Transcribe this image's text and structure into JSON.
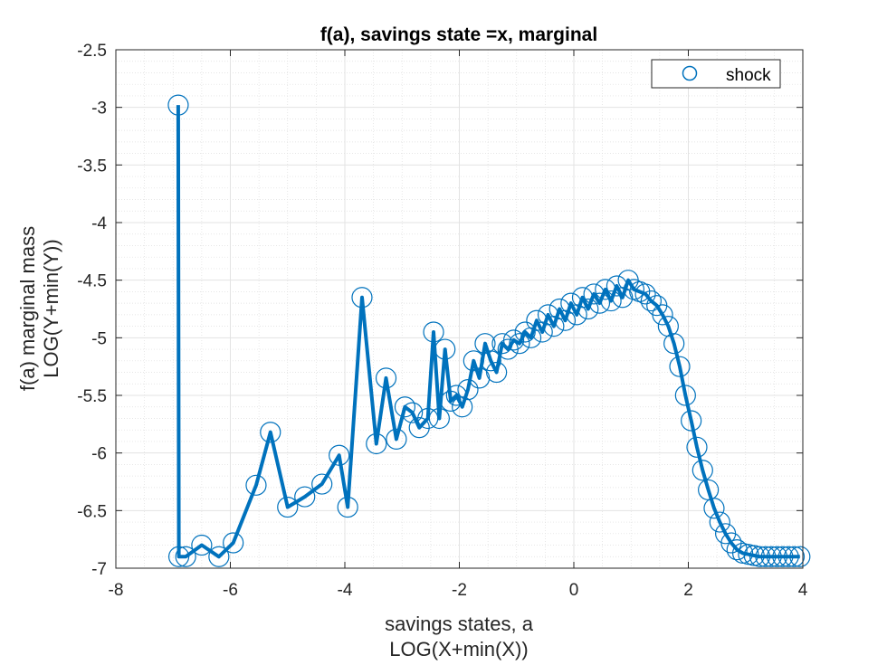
{
  "chart_data": {
    "type": "line",
    "title": "f(a), savings state =x, marginal",
    "xlabel_lines": [
      "savings states, a",
      "LOG(X+min(X))"
    ],
    "ylabel_lines": [
      "f(a) marginal mass",
      "LOG(Y+min(Y))"
    ],
    "xlim": [
      -8,
      4
    ],
    "ylim": [
      -7,
      -2.5
    ],
    "xticks": [
      -8,
      -6,
      -4,
      -2,
      0,
      2,
      4
    ],
    "xtick_labels": [
      "-8",
      "-6",
      "-4",
      "-2",
      "0",
      "2",
      "4"
    ],
    "yticks": [
      -7,
      -6.5,
      -6,
      -5.5,
      -5,
      -4.5,
      -4,
      -3.5,
      -3,
      -2.5
    ],
    "ytick_labels": [
      "-7",
      "-6.5",
      "-6",
      "-5.5",
      "-5",
      "-4.5",
      "-4",
      "-3.5",
      "-3",
      "-2.5"
    ],
    "grid": true,
    "minor_grid": true,
    "legend_position": "top-right",
    "color": "#0072BD",
    "series": [
      {
        "name": "shock",
        "marker": "circle",
        "x": [
          -6.91,
          -6.9,
          -6.78,
          -6.5,
          -6.2,
          -5.95,
          -5.55,
          -5.3,
          -5.0,
          -4.7,
          -4.4,
          -4.1,
          -3.95,
          -3.7,
          -3.45,
          -3.28,
          -3.1,
          -2.95,
          -2.82,
          -2.7,
          -2.55,
          -2.45,
          -2.35,
          -2.25,
          -2.15,
          -2.05,
          -1.95,
          -1.85,
          -1.75,
          -1.65,
          -1.55,
          -1.45,
          -1.35,
          -1.25,
          -1.15,
          -1.05,
          -0.95,
          -0.85,
          -0.75,
          -0.65,
          -0.55,
          -0.45,
          -0.35,
          -0.25,
          -0.15,
          -0.05,
          0.05,
          0.15,
          0.25,
          0.35,
          0.45,
          0.55,
          0.65,
          0.75,
          0.85,
          0.95,
          1.05,
          1.15,
          1.25,
          1.35,
          1.45,
          1.55,
          1.65,
          1.75,
          1.85,
          1.95,
          2.05,
          2.15,
          2.25,
          2.35,
          2.45,
          2.55,
          2.65,
          2.75,
          2.85,
          2.95,
          3.05,
          3.15,
          3.25,
          3.35,
          3.45,
          3.55,
          3.65,
          3.75,
          3.85,
          3.95
        ],
        "y": [
          -2.98,
          -6.9,
          -6.9,
          -6.8,
          -6.9,
          -6.78,
          -6.28,
          -5.82,
          -6.47,
          -6.38,
          -6.27,
          -6.02,
          -6.47,
          -4.65,
          -5.92,
          -5.35,
          -5.88,
          -5.6,
          -5.65,
          -5.78,
          -5.7,
          -4.95,
          -5.7,
          -5.1,
          -5.55,
          -5.5,
          -5.6,
          -5.45,
          -5.2,
          -5.35,
          -5.05,
          -5.2,
          -5.3,
          -5.05,
          -5.1,
          -5.02,
          -5.05,
          -4.95,
          -5.0,
          -4.85,
          -4.95,
          -4.8,
          -4.9,
          -4.75,
          -4.85,
          -4.7,
          -4.8,
          -4.65,
          -4.75,
          -4.62,
          -4.7,
          -4.58,
          -4.68,
          -4.55,
          -4.65,
          -4.5,
          -4.58,
          -4.6,
          -4.62,
          -4.68,
          -4.72,
          -4.8,
          -4.9,
          -5.05,
          -5.25,
          -5.5,
          -5.72,
          -5.95,
          -6.15,
          -6.32,
          -6.48,
          -6.6,
          -6.7,
          -6.78,
          -6.84,
          -6.87,
          -6.88,
          -6.89,
          -6.9,
          -6.9,
          -6.9,
          -6.9,
          -6.9,
          -6.9,
          -6.9,
          -6.9
        ]
      }
    ]
  }
}
